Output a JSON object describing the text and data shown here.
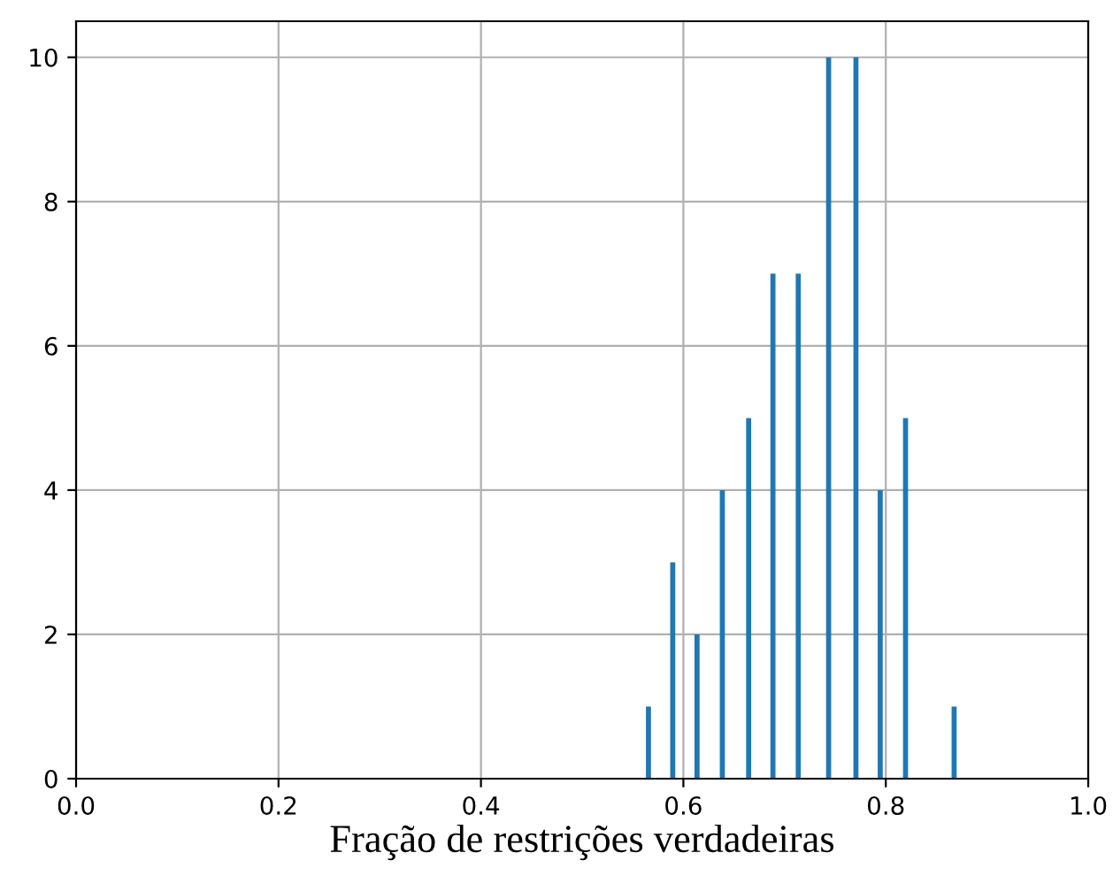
{
  "chart_data": {
    "type": "histogram",
    "xlabel": "Fração de restrições verdadeiras",
    "bins": [
      0.563,
      0.568,
      0.587,
      0.592,
      0.611,
      0.616,
      0.636,
      0.641,
      0.662,
      0.667,
      0.686,
      0.691,
      0.711,
      0.716,
      0.741,
      0.746,
      0.768,
      0.773,
      0.792,
      0.797,
      0.817,
      0.822,
      0.865,
      0.87
    ],
    "values": [
      1,
      0,
      3,
      0,
      2,
      0,
      4,
      0,
      5,
      0,
      7,
      0,
      7,
      0,
      10,
      0,
      10,
      0,
      4,
      0,
      5,
      0,
      1
    ],
    "color": "#1f77b4",
    "xlim": [
      0,
      1
    ],
    "xticks": [
      {
        "value": 0,
        "label": "0.0"
      },
      {
        "value": 0.2,
        "label": "0.2"
      },
      {
        "value": 0.4,
        "label": "0.4"
      },
      {
        "value": 0.6,
        "label": "0.6"
      },
      {
        "value": 0.8,
        "label": "0.8"
      },
      {
        "value": 1,
        "label": "1.0"
      }
    ],
    "ylim": [
      0,
      10.5
    ],
    "yticks": [
      0,
      2,
      4,
      6,
      8,
      10
    ],
    "grid": true
  }
}
